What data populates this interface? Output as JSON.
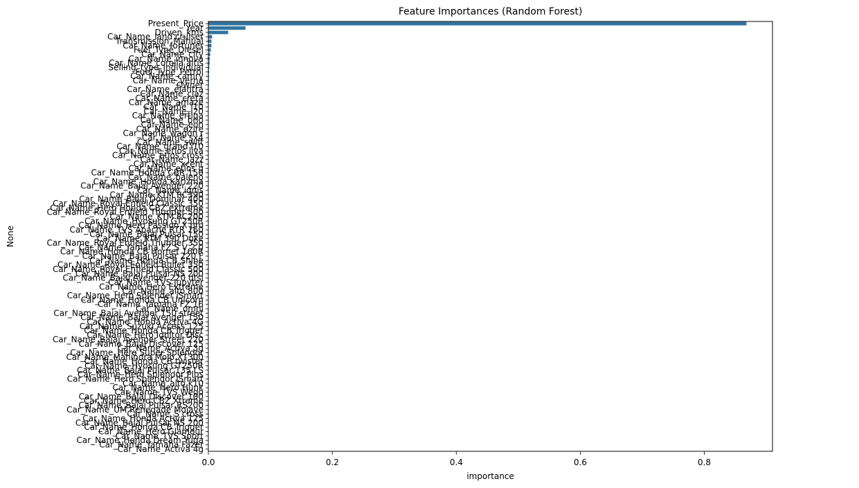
{
  "chart_data": {
    "type": "bar",
    "orientation": "horizontal",
    "title": "Feature Importances (Random Forest)",
    "xlabel": "importance",
    "ylabel": "None",
    "xlim": [
      0,
      0.91
    ],
    "xticks": [
      0.0,
      0.2,
      0.4,
      0.6,
      0.8
    ],
    "xtick_labels": [
      "0.0",
      "0.2",
      "0.4",
      "0.6",
      "0.8"
    ],
    "grid": false,
    "legend": "none",
    "bar_color": "#3274a1",
    "categories": [
      "Present_Price",
      "Year",
      "Driven_kms",
      "Car_Name_land cruiser",
      "Transmission_Manual",
      "Car_Name_fortuner",
      "Fuel_Type_Diesel",
      "Car_Name_city",
      "Car_Name_innova",
      "Car_Name_corolla altis",
      "Selling_type_Individual",
      "Fuel_Type_Petrol",
      "Car_Name_camry",
      "Car_Name_verna",
      "Owner",
      "Car_Name_elantra",
      "Car_Name_ciaz",
      "Car_Name_creta",
      "Car_Name_amaze",
      "Car_Name_i10",
      "Car_Name_i20",
      "Car_Name_ertiga",
      "Car_Name_brio",
      "Car_Name_eon",
      "Car_Name_dzire",
      "Car_Name_wagon r",
      "Car_Name_sx4",
      "Car_Name_swift",
      "Car_Name_grand i10",
      "Car_Name_etios liva",
      "Car_Name_etios cross",
      "Car_Name_jazz",
      "Car_Name_xcent",
      "Car_Name_etios g",
      "Car_Name_Honda CBR 150",
      "Car_Name_baleno",
      "Car_Name_Honda Karizma",
      "Car_Name_Bajaj Avenger 220",
      "Car_Name_ignis",
      "Car_Name_KTM RC390",
      "Car_Name_Bajaj Dominar 400",
      "Car_Name_Royal Enfield Classic 350",
      "Car_Name_Hero Honda CBZ extreme",
      "Car_Name_Royal Enfield Thunder 500",
      "Car_Name_KTM RC200",
      "Car_Name_Hyosung GT250R",
      "Car_Name_Hero Passion X pro",
      "Car_Name_TVS Apache RTR 160",
      "Car_Name_Bajaj Pulsar 150",
      "Car_Name_KTM 390 Duke",
      "Car_Name_Royal Enfield Thunder 350",
      "Car_Name_Yamaha FZ S V 2.0",
      "Car_Name_Honda CB Hornet 160R",
      "Car_Name_Bajaj Pulsar 220 F",
      "Car_Name_Honda CB Shine",
      "Car_Name_Royal Enfield Bullet 350",
      "Car_Name_Royal Enfield Classic 500",
      "Car_Name_Bajaj Pulsar NS 200",
      "Car_Name_Bajaj Avenger 220 dtsi",
      "Car_Name_TVS Jupyter",
      "Car_Name_Hero Extreme",
      "Car_Name_alto 800",
      "Car_Name_Hero Splender iSmart",
      "Car_Name_Honda CB Unicorn",
      "Car_Name_Yamaha FZ 16",
      "Car_Name_omni",
      "Car_Name_Bajaj Avenger 150 street",
      "Car_Name_Bajaj Avenger 150",
      "Car_Name_Honda Activa 4G",
      "Car_Name_Suzuki Access 125",
      "Car_Name_Honda CB Trigger",
      "Car_Name_Hero Ignitor Disc",
      "Car_Name_Bajaj Avenger Street 220",
      "Car_Name_Bajaj Discover 125",
      "Car_Name_Activa 3g",
      "Car_Name_Hero Super Splendor",
      "Car_Name_Mahindra Mojo XT300",
      "Car_Name_Honda CB twister",
      "Car_Name_Hyosung GT250R",
      "Car_Name_Bajaj Pulsar 135 LS",
      "Car_Name_Hero Splendor Plus",
      "Car_Name_Hero Splendor iSmart",
      "Car_Name_alto k10",
      "Car_Name_Hero Hunk",
      "Car_Name_TVS Wego",
      "Car_Name_Bajaj Discover 100",
      "Car_Name_Hero CBZ Xtreme",
      "Car_Name_Bajaj Pulsar RS200",
      "Car_Name_UM Renegade Mojave",
      "Car_Name_S cross",
      "Car_Name_Honda Activa 125",
      "Car_Name_Bajaj Pulsar NS 200",
      "Car_Name_Honda CB Trigger",
      "Car_Name_Hero Glamour",
      "Car_Name_TVS Sport",
      "Car_Name_Honda Dream Yuga",
      "Car_Name_Yamaha Fazer",
      "Car_Name_Activa 4g"
    ],
    "values": [
      0.868,
      0.06,
      0.032,
      0.006,
      0.005,
      0.005,
      0.004,
      0.003,
      0.0025,
      0.002,
      0.0015,
      0.0012,
      0.001,
      0.0009,
      0.0008,
      0.0007,
      0.0006,
      0.0006,
      0.0005,
      0.0005,
      0.0004,
      0.0004,
      0.0004,
      0.0003,
      0.0003,
      0.0003,
      0.0003,
      0.0002,
      0.0002,
      0.0002,
      0.0002,
      0.0002,
      0.0002,
      0.0001,
      0.0001,
      0.0001,
      0.0001,
      0.0001,
      0.0001,
      0.0001,
      0.0001,
      0.0001,
      0.0001,
      0.0001,
      0.0001,
      0.0001,
      0.0001,
      0.0001,
      0.0001,
      0.0001,
      0.0001,
      0.0001,
      0.0001,
      0.0001,
      0.0001,
      0.0001,
      0.0001,
      0.0001,
      0.0001,
      0.0001,
      0.0001,
      0.0001,
      0.0001,
      0.0001,
      0.0001,
      0.0001,
      0.0001,
      0.0001,
      0.0001,
      0.0001,
      0.0001,
      0.0001,
      0.0001,
      0.0001,
      0.0001,
      0.0001,
      0.0001,
      0.0001,
      0.0001,
      0.0001,
      0.0001,
      0.0001,
      0.0001,
      0.0001,
      0.0001,
      0.0001,
      0.0001,
      0.0001,
      0.0001,
      0.0001,
      0.0001,
      0.0001,
      0.0001,
      0.0001,
      0.0001,
      0.0001,
      0.0001,
      0.0001
    ]
  }
}
